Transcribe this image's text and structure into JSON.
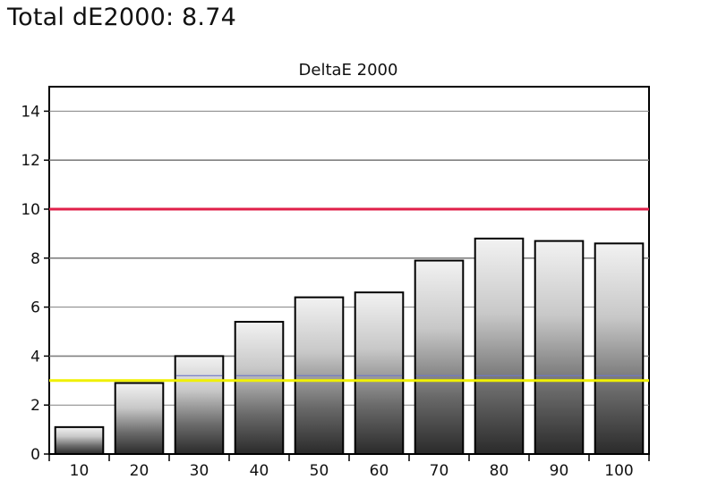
{
  "headline": "Total dE2000: 8.74",
  "chart_data": {
    "type": "bar",
    "title": "DeltaE 2000",
    "xlabel": "",
    "ylabel": "",
    "categories": [
      "10",
      "20",
      "30",
      "40",
      "50",
      "60",
      "70",
      "80",
      "90",
      "100"
    ],
    "values": [
      1.1,
      2.9,
      4.0,
      5.4,
      6.4,
      6.6,
      7.9,
      8.8,
      8.7,
      8.6
    ],
    "ylim": [
      0,
      15
    ],
    "yticks": [
      0,
      2,
      4,
      6,
      8,
      10,
      12,
      14
    ],
    "grid": "horizontal",
    "thresholds": [
      {
        "value": 10,
        "color": "#e0204a"
      },
      {
        "value": 3,
        "color": "#f0f000"
      }
    ],
    "colors": {
      "bar_outline": "#000000",
      "grid": "#808080",
      "gradient_light": "#f2f2f2",
      "gradient_dark": "#2a2a2a",
      "accent_line": "#6f78c8"
    }
  }
}
